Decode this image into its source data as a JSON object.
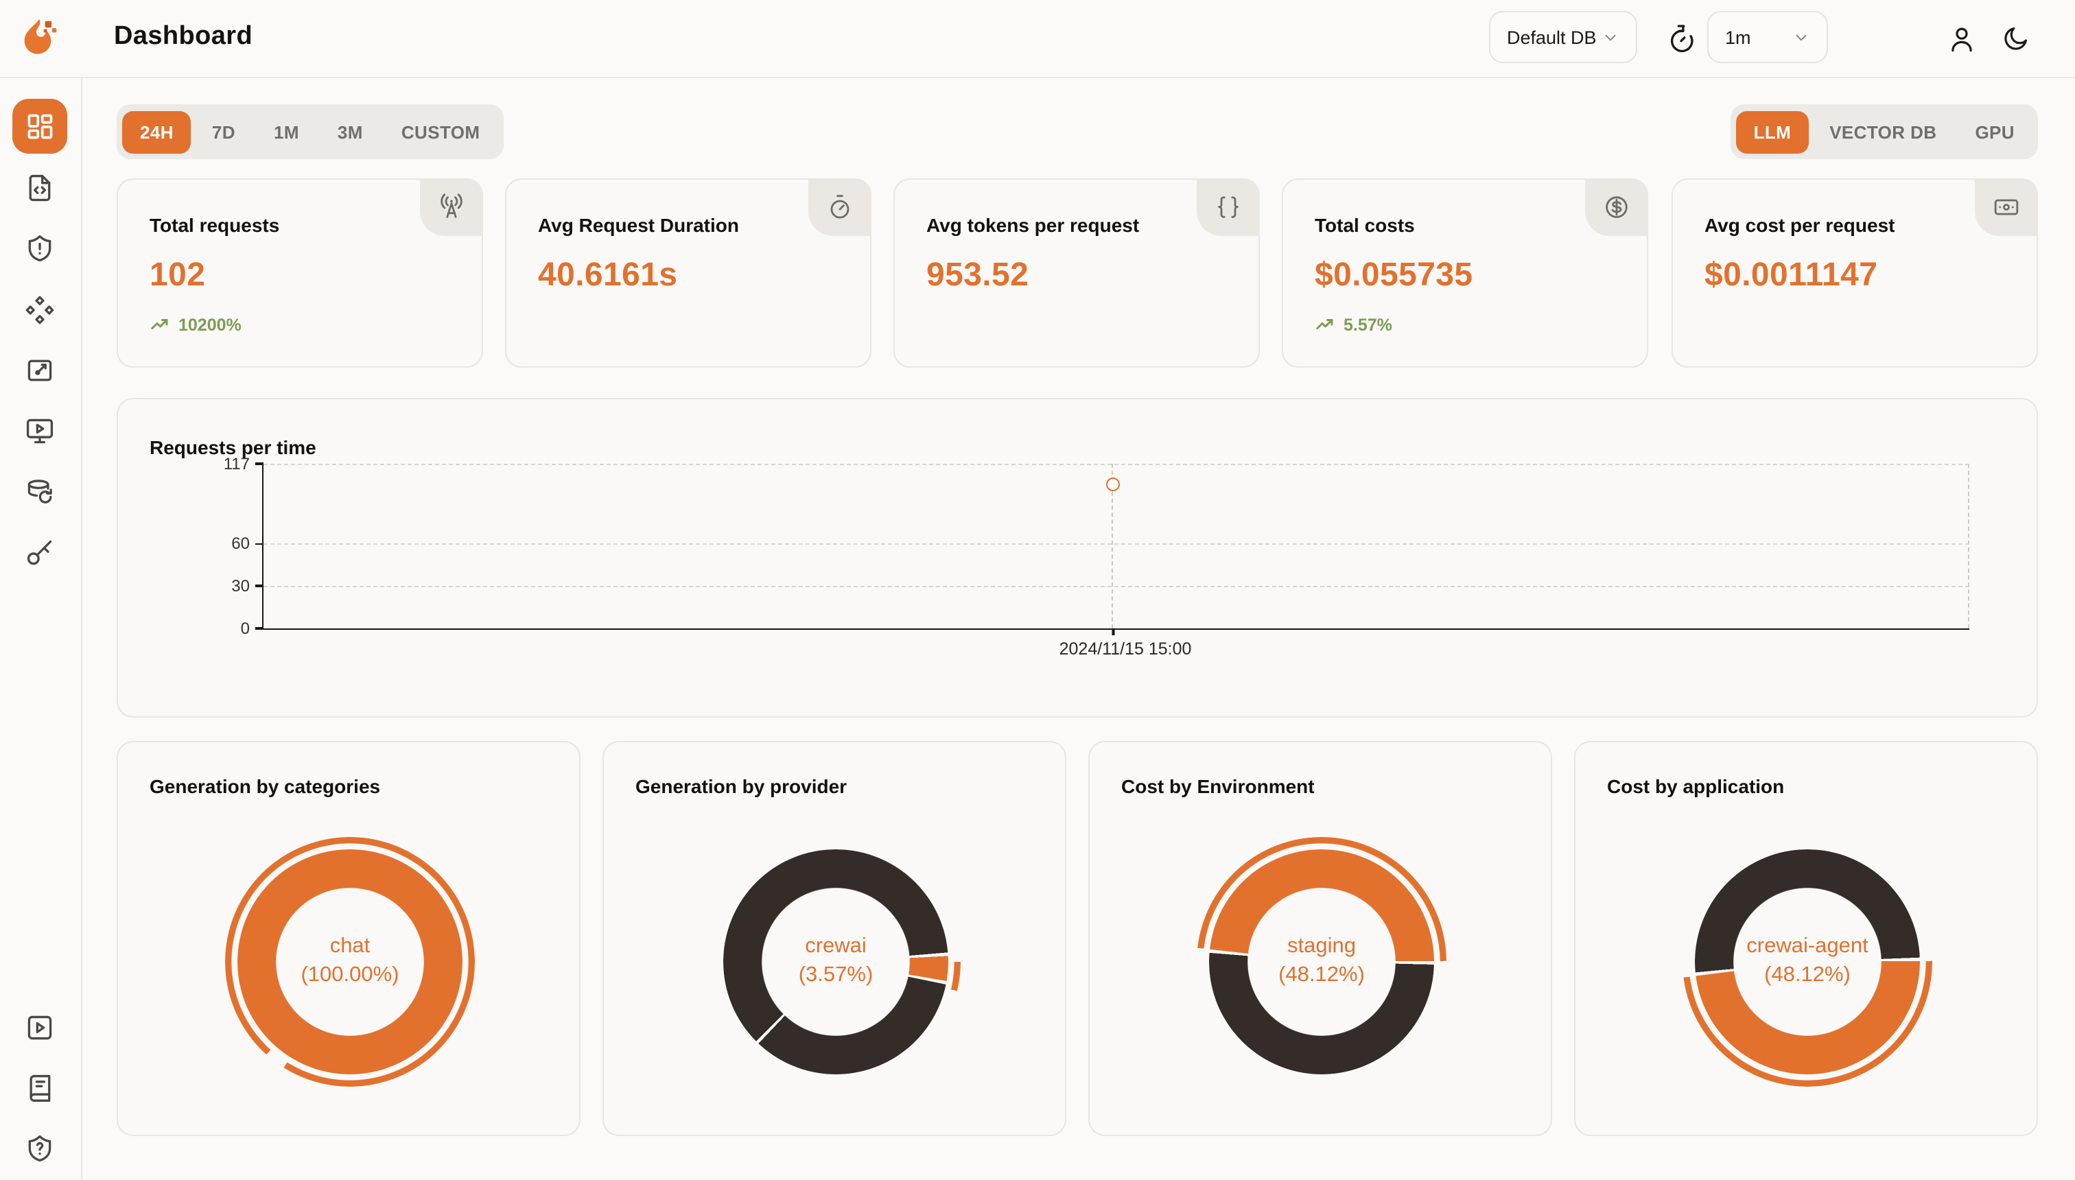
{
  "palette": {
    "accent": "#E2712E",
    "accent_deep": "#D8571E",
    "dark": "#332C28",
    "green": "#7E9C54",
    "card_bg": "#FAF9F7",
    "page_bg": "#FBFAF8",
    "tab_bg": "#ECEAE6",
    "text": "#16130F"
  },
  "header": {
    "title": "Dashboard",
    "db_selector": {
      "value": "Default DB",
      "icon": "chevron-down-icon"
    },
    "refresh_timer": {
      "icon": "timer-reset-icon"
    },
    "interval_selector": {
      "value": "1m",
      "icon": "chevron-down-icon"
    },
    "profile_icon": "user-icon",
    "theme_icon": "moon-icon"
  },
  "sidebar": {
    "items": [
      {
        "name": "dashboard",
        "icon": "layout-dashboard-icon",
        "active": true
      },
      {
        "name": "requests",
        "icon": "file-code-icon",
        "active": false
      },
      {
        "name": "exceptions",
        "icon": "shield-alert-icon",
        "active": false
      },
      {
        "name": "prompt-hub",
        "icon": "diamonds-icon",
        "active": false
      },
      {
        "name": "vault",
        "icon": "board-edit-icon",
        "active": false
      },
      {
        "name": "playground",
        "icon": "monitor-play-icon",
        "active": false
      },
      {
        "name": "databases",
        "icon": "database-refresh-icon",
        "active": false
      },
      {
        "name": "api-keys",
        "icon": "key-icon",
        "active": false
      }
    ],
    "footer_items": [
      {
        "name": "demo-video",
        "icon": "square-play-icon"
      },
      {
        "name": "documentation",
        "icon": "book-icon"
      },
      {
        "name": "help",
        "icon": "shield-question-icon"
      }
    ]
  },
  "toolbar": {
    "time_ranges": [
      "24H",
      "7D",
      "1M",
      "3M",
      "CUSTOM"
    ],
    "active_time_range": "24H",
    "views": [
      "LLM",
      "VECTOR DB",
      "GPU"
    ],
    "active_view": "LLM"
  },
  "stat_cards": [
    {
      "label": "Total requests",
      "value": "102",
      "trend": "10200%",
      "icon": "radio-tower-icon",
      "trend_icon": "trending-up-icon"
    },
    {
      "label": "Avg Request Duration",
      "value": "40.6161s",
      "icon": "stopwatch-icon"
    },
    {
      "label": "Avg tokens per request",
      "value": "953.52",
      "icon": "braces-icon"
    },
    {
      "label": "Total costs",
      "value": "$0.055735",
      "trend": "5.57%",
      "icon": "circle-dollar-icon",
      "trend_icon": "trending-up-icon"
    },
    {
      "label": "Avg cost per request",
      "value": "$0.0011147",
      "icon": "banknote-icon"
    }
  ],
  "chart_data": [
    {
      "type": "line",
      "title": "Requests per time",
      "xlabel": "",
      "ylabel": "",
      "x_labels": [
        "2024/11/15 15:00"
      ],
      "points": [
        {
          "x_label": "2024/11/15 15:00",
          "value": 102
        }
      ],
      "yticks": [
        0,
        30,
        60,
        117
      ],
      "ylim": [
        0,
        117
      ],
      "layout": {
        "grid": "dashed-horizontal",
        "point_x_frac": 0.498
      }
    },
    {
      "type": "pie",
      "title": "Generation by categories",
      "labels": [
        "chat"
      ],
      "values": [
        100.0
      ],
      "center_label": "chat",
      "center_pct": "(100.00%)",
      "layout": {
        "ring_from": 0,
        "ring_stops": [
          [
            "a",
            0,
            360
          ]
        ],
        "outer_from": 222,
        "outer_stops": [
          [
            "a",
            0,
            350
          ],
          [
            "t",
            350,
            360
          ]
        ]
      }
    },
    {
      "type": "pie",
      "title": "Generation by provider",
      "labels": [
        "crewai"
      ],
      "values": [
        3.57
      ],
      "remainder_pct": 96.43,
      "center_label": "crewai",
      "center_pct": "(3.57%)",
      "layout": {
        "ring_from": 87,
        "ring_stops": [
          [
            "a",
            0,
            12.85
          ],
          [
            "w",
            12.85,
            14.6
          ],
          [
            "d",
            14.6,
            136.4
          ],
          [
            "w",
            136.4,
            138.1
          ],
          [
            "d",
            138.1,
            358.2
          ],
          [
            "w",
            358.2,
            360
          ]
        ],
        "outer_from": 90,
        "outer_stops": [
          [
            "a",
            0,
            13.5
          ],
          [
            "t",
            13.5,
            360
          ]
        ]
      }
    },
    {
      "type": "pie",
      "title": "Cost by Environment",
      "labels": [
        "staging"
      ],
      "values": [
        48.12
      ],
      "remainder_pct": 51.88,
      "center_label": "staging",
      "center_pct": "(48.12%)",
      "layout": {
        "ring_from": 276.4,
        "ring_stops": [
          [
            "a",
            0,
            173.2
          ],
          [
            "w",
            173.2,
            175
          ],
          [
            "d",
            175,
            358.2
          ],
          [
            "w",
            358.2,
            360
          ]
        ],
        "outer_from": 276.4,
        "outer_stops": [
          [
            "a",
            0,
            173.2
          ],
          [
            "t",
            173.2,
            360
          ]
        ]
      }
    },
    {
      "type": "pie",
      "title": "Cost by application",
      "labels": [
        "crewai-agent"
      ],
      "values": [
        48.12
      ],
      "remainder_pct": 51.88,
      "center_label": "crewai-agent",
      "center_pct": "(48.12%)",
      "layout": {
        "ring_from": 89.6,
        "ring_stops": [
          [
            "a",
            0,
            173.2
          ],
          [
            "w",
            173.2,
            175
          ],
          [
            "d",
            175,
            358.2
          ],
          [
            "w",
            358.2,
            360
          ]
        ],
        "outer_from": 89.6,
        "outer_stops": [
          [
            "a",
            0,
            173.2
          ],
          [
            "t",
            173.2,
            360
          ]
        ]
      }
    }
  ]
}
